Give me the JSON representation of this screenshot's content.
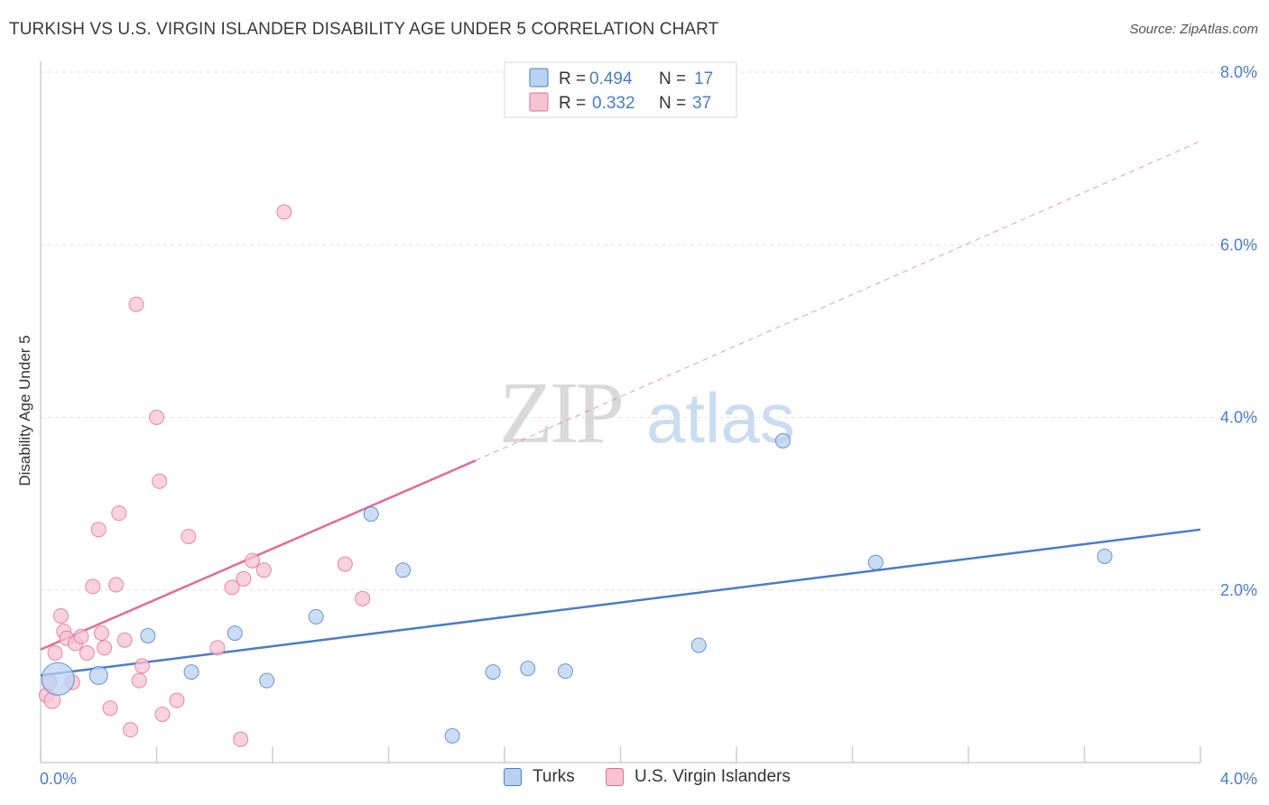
{
  "chart_data": {
    "type": "scatter",
    "title": "TURKISH VS U.S. VIRGIN ISLANDER DISABILITY AGE UNDER 5 CORRELATION CHART",
    "source": "Source: ZipAtlas.com",
    "ylabel": "Disability Age Under 5",
    "xlim": [
      0,
      4.0
    ],
    "ylim": [
      0,
      8.0
    ],
    "y_ticks": [
      {
        "value": 2.0,
        "label": "2.0%"
      },
      {
        "value": 4.0,
        "label": "4.0%"
      },
      {
        "value": 6.0,
        "label": "6.0%"
      },
      {
        "value": 8.0,
        "label": "8.0%"
      }
    ],
    "x_tick_labels": {
      "min": "0.0%",
      "max": "4.0%"
    },
    "grid": true,
    "watermark": {
      "zip": "ZIP",
      "atlas": "atlas"
    },
    "legend": {
      "entries": [
        {
          "r_label": "R =",
          "r": "0.494",
          "n_label": "N =",
          "n": "17"
        },
        {
          "r_label": "R =",
          "r": "0.332",
          "n_label": "N =",
          "n": "37"
        }
      ]
    },
    "series": [
      {
        "name": "Turks",
        "color": "#4a7cc9",
        "fill": "#b9d2f2",
        "trend": {
          "x0": 0.0,
          "y0": 1.01,
          "x1": 4.0,
          "y1": 2.7,
          "dashed_to": null
        },
        "points": [
          {
            "x": 0.06,
            "y": 0.97,
            "size": 18
          },
          {
            "x": 0.2,
            "y": 1.01,
            "size": 10
          },
          {
            "x": 0.37,
            "y": 1.47,
            "size": 8
          },
          {
            "x": 0.52,
            "y": 1.05,
            "size": 8
          },
          {
            "x": 0.67,
            "y": 1.5,
            "size": 8
          },
          {
            "x": 0.78,
            "y": 0.95,
            "size": 8
          },
          {
            "x": 0.95,
            "y": 1.69,
            "size": 8
          },
          {
            "x": 1.14,
            "y": 2.88,
            "size": 8
          },
          {
            "x": 1.25,
            "y": 2.23,
            "size": 8
          },
          {
            "x": 1.42,
            "y": 0.31,
            "size": 8
          },
          {
            "x": 1.56,
            "y": 1.05,
            "size": 8
          },
          {
            "x": 1.68,
            "y": 1.09,
            "size": 8
          },
          {
            "x": 1.81,
            "y": 1.06,
            "size": 8
          },
          {
            "x": 2.27,
            "y": 1.36,
            "size": 8
          },
          {
            "x": 2.56,
            "y": 3.73,
            "size": 8
          },
          {
            "x": 2.88,
            "y": 2.32,
            "size": 8
          },
          {
            "x": 3.67,
            "y": 2.39,
            "size": 8
          }
        ]
      },
      {
        "name": "U.S. Virgin Islanders",
        "color": "#e36b97",
        "fill": "#f6c3d3",
        "trend": {
          "x0": 0.0,
          "y0": 1.31,
          "x1": 1.5,
          "y1": 3.5,
          "dashed_x1": 4.0,
          "dashed_y1": 7.2
        },
        "points": [
          {
            "x": 0.02,
            "y": 0.78,
            "size": 8
          },
          {
            "x": 0.03,
            "y": 0.93,
            "size": 8
          },
          {
            "x": 0.04,
            "y": 0.72,
            "size": 9
          },
          {
            "x": 0.05,
            "y": 1.27,
            "size": 8
          },
          {
            "x": 0.07,
            "y": 1.7,
            "size": 8
          },
          {
            "x": 0.08,
            "y": 1.52,
            "size": 8
          },
          {
            "x": 0.09,
            "y": 1.44,
            "size": 8
          },
          {
            "x": 0.11,
            "y": 0.93,
            "size": 8
          },
          {
            "x": 0.12,
            "y": 1.38,
            "size": 8
          },
          {
            "x": 0.14,
            "y": 1.46,
            "size": 8
          },
          {
            "x": 0.16,
            "y": 1.27,
            "size": 8
          },
          {
            "x": 0.18,
            "y": 2.04,
            "size": 8
          },
          {
            "x": 0.2,
            "y": 2.7,
            "size": 8
          },
          {
            "x": 0.21,
            "y": 1.5,
            "size": 8
          },
          {
            "x": 0.22,
            "y": 1.33,
            "size": 8
          },
          {
            "x": 0.24,
            "y": 0.63,
            "size": 8
          },
          {
            "x": 0.26,
            "y": 2.06,
            "size": 8
          },
          {
            "x": 0.27,
            "y": 2.89,
            "size": 8
          },
          {
            "x": 0.29,
            "y": 1.42,
            "size": 8
          },
          {
            "x": 0.31,
            "y": 0.38,
            "size": 8
          },
          {
            "x": 0.33,
            "y": 5.31,
            "size": 8
          },
          {
            "x": 0.34,
            "y": 0.95,
            "size": 8
          },
          {
            "x": 0.35,
            "y": 1.12,
            "size": 8
          },
          {
            "x": 0.4,
            "y": 4.0,
            "size": 8
          },
          {
            "x": 0.41,
            "y": 3.26,
            "size": 8
          },
          {
            "x": 0.42,
            "y": 0.56,
            "size": 8
          },
          {
            "x": 0.47,
            "y": 0.72,
            "size": 8
          },
          {
            "x": 0.51,
            "y": 2.62,
            "size": 8
          },
          {
            "x": 0.61,
            "y": 1.33,
            "size": 8
          },
          {
            "x": 0.66,
            "y": 2.03,
            "size": 8
          },
          {
            "x": 0.69,
            "y": 0.27,
            "size": 8
          },
          {
            "x": 0.7,
            "y": 2.13,
            "size": 8
          },
          {
            "x": 0.73,
            "y": 2.34,
            "size": 8
          },
          {
            "x": 0.77,
            "y": 2.23,
            "size": 8
          },
          {
            "x": 0.84,
            "y": 6.38,
            "size": 8
          },
          {
            "x": 1.05,
            "y": 2.3,
            "size": 8
          },
          {
            "x": 1.11,
            "y": 1.9,
            "size": 8
          }
        ]
      }
    ]
  }
}
